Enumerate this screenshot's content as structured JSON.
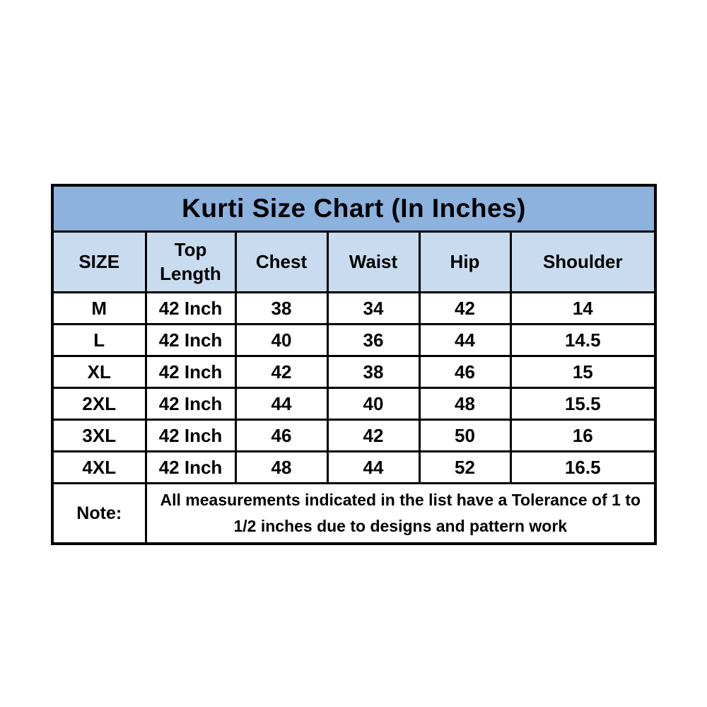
{
  "colors": {
    "page_bg": "#FFFFFF",
    "title_bg": "#8CB2DE",
    "header_bg": "#C9DBEF",
    "cell_bg": "#FFFFFF",
    "border": "#000000",
    "text": "#000000"
  },
  "chart_data": {
    "type": "table",
    "title": "Kurti Size Chart (In Inches)",
    "unit": "Inches",
    "columns": [
      "SIZE",
      "Top Length",
      "Chest",
      "Waist",
      "Hip",
      "Shoulder"
    ],
    "rows": [
      [
        "M",
        "42 Inch",
        "38",
        "34",
        "42",
        "14"
      ],
      [
        "L",
        "42 Inch",
        "40",
        "36",
        "44",
        "14.5"
      ],
      [
        "XL",
        "42 Inch",
        "42",
        "38",
        "46",
        "15"
      ],
      [
        "2XL",
        "42 Inch",
        "44",
        "40",
        "48",
        "15.5"
      ],
      [
        "3XL",
        "42 Inch",
        "46",
        "42",
        "50",
        "16"
      ],
      [
        "4XL",
        "42 Inch",
        "48",
        "44",
        "52",
        "16.5"
      ]
    ],
    "note_label": "Note:",
    "note": "All measurements indicated in the list have a Tolerance of 1 to 1/2 inches due to designs and pattern work"
  }
}
